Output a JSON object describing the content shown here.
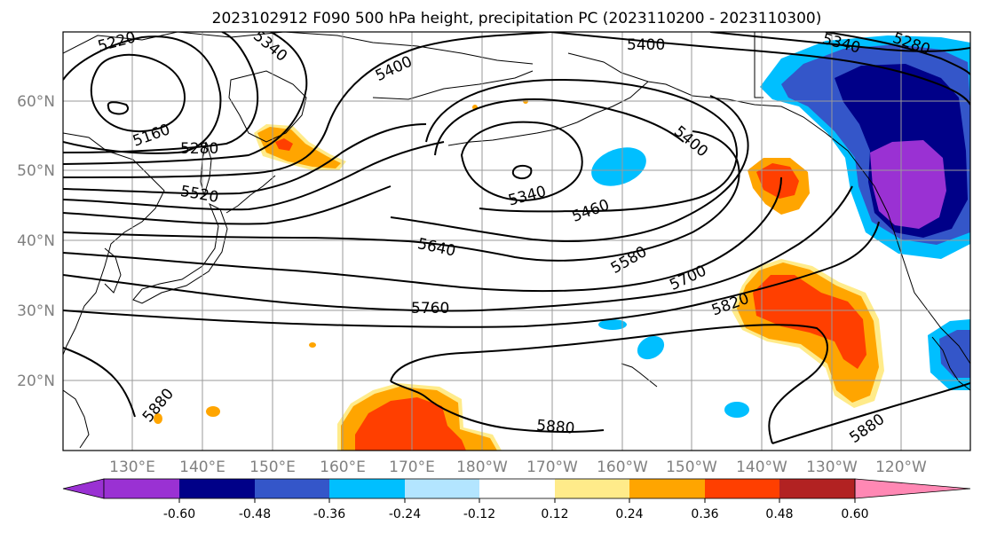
{
  "title": "2023102912 F090 500 hPa height, precipitation PC (2023110200 - 2023110300)",
  "lat_labels": [
    "60°N",
    "50°N",
    "40°N",
    "30°N",
    "20°N"
  ],
  "lon_labels": [
    "130°E",
    "140°E",
    "150°E",
    "160°E",
    "170°E",
    "180°W",
    "170°W",
    "160°W",
    "150°W",
    "140°W",
    "130°W",
    "120°W"
  ],
  "contour_labels": {
    "c5220": "5220",
    "c5340a": "5340",
    "c5400a": "5400",
    "c5400b": "5400",
    "c5340b": "5340",
    "c5280a": "5280",
    "c5160": "5160",
    "c5280b": "5280",
    "c5520": "5520",
    "c5400c": "5400",
    "c5340c": "5340",
    "c5460": "5460",
    "c5640": "5640",
    "c5580": "5580",
    "c5700": "5700",
    "c5760": "5760",
    "c5820": "5820",
    "c5880a": "5880",
    "c5880b": "5880",
    "c5880c": "5880"
  },
  "colorbar": {
    "colors": [
      "#9a31d3",
      "#000088",
      "#3456c9",
      "#00bfff",
      "#b3e5ff",
      "#ffffff",
      "#ffeb8a",
      "#ffa500",
      "#ff3f00",
      "#b22222",
      "#ff88b4"
    ],
    "tick_labels": [
      "-0.60",
      "-0.48",
      "-0.36",
      "-0.24",
      "-0.12",
      "0.12",
      "0.24",
      "0.36",
      "0.48",
      "0.60"
    ]
  }
}
